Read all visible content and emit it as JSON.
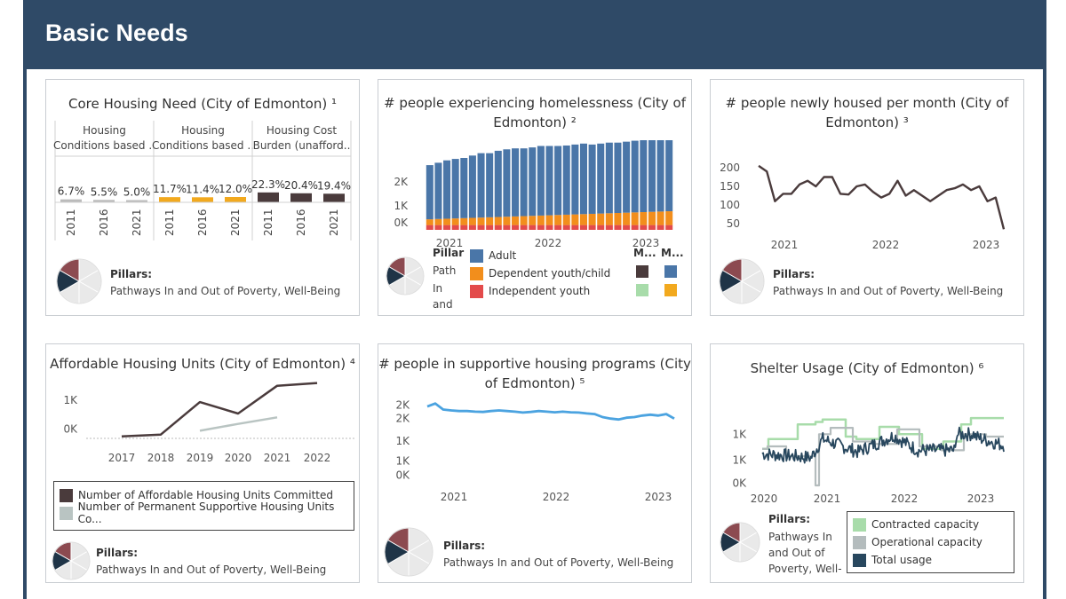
{
  "header": {
    "title": "Basic Needs"
  },
  "colors": {
    "header_bg": "#2f4a67",
    "dark_brown": "#4a3b3c",
    "gray_bar": "#bbbbbb",
    "orange": "#f2a91e",
    "adult": "#4a76a8",
    "dependent": "#f28e1c",
    "independent": "#e34b4b",
    "line_blue": "#4ba3e0",
    "contracted": "#a8dcaa",
    "operational": "#b4bcbd",
    "total": "#28475e",
    "ps_line": "#b9c4c2"
  },
  "pillars": {
    "heading": "Pillars:",
    "text": "Pathways In and Out of Poverty, Well-Being"
  },
  "card1": {
    "title": "Core Housing Need (City of Edmonton) ¹",
    "groups": [
      {
        "header": [
          "Housing",
          "Conditions based .."
        ],
        "color": "#bbbbbb",
        "labels": [
          "6.7%",
          "5.5%",
          "5.0%"
        ],
        "years": [
          "2011",
          "2016",
          "2021"
        ]
      },
      {
        "header": [
          "Housing",
          "Conditions based .."
        ],
        "color": "#f2a91e",
        "labels": [
          "11.7%",
          "11.4%",
          "12.0%"
        ],
        "years": [
          "2011",
          "2016",
          "2021"
        ]
      },
      {
        "header": [
          "Housing Cost",
          "Burden (unafford.."
        ],
        "color": "#4a3b3c",
        "labels": [
          "22.3%",
          "20.4%",
          "19.4%"
        ],
        "years": [
          "2011",
          "2016",
          "2021"
        ]
      }
    ]
  },
  "card2": {
    "title_lines": [
      "# people experiencing homelessness (City of",
      "Edmonton) ²"
    ],
    "y_ticks": [
      "2K",
      "1K",
      "0K"
    ],
    "x_ticks": [
      "2021",
      "2022",
      "2023"
    ],
    "pillars_clipped_head": "Pillar",
    "pillars_clipped_lines": [
      "Path",
      "In",
      "and"
    ],
    "legend": [
      "Adult",
      "Dependent youth/child",
      "Independent youth"
    ],
    "mini_headers": [
      "M...",
      "M..."
    ]
  },
  "card3": {
    "title_lines": [
      "# people newly housed per month (City of",
      "Edmonton) ³"
    ],
    "y_ticks": [
      "200",
      "150",
      "100",
      "50"
    ],
    "x_ticks": [
      "2021",
      "2022",
      "2023"
    ]
  },
  "card4": {
    "title": "Affordable Housing Units (City of Edmonton) ⁴",
    "y_ticks": [
      "1K",
      "0K"
    ],
    "x_ticks": [
      "2017",
      "2018",
      "2019",
      "2020",
      "2021",
      "2022"
    ],
    "legend": [
      "Number of Affordable Housing Units Committed",
      "Number of Permanent Supportive Housing Units Co..."
    ]
  },
  "card5": {
    "title_lines": [
      "# people in supportive housing programs (City",
      "of Edmonton) ⁵"
    ],
    "y_ticks": [
      "2K",
      "2K",
      "1K",
      "1K",
      "0K"
    ],
    "x_ticks": [
      "2021",
      "2022",
      "2023"
    ]
  },
  "card6": {
    "title": "Shelter Usage (City of Edmonton) ⁶",
    "y_ticks": [
      "1K",
      "1K",
      "0K"
    ],
    "x_ticks": [
      "2020",
      "2021",
      "2022",
      "2023"
    ],
    "pillars_lines": [
      "Pathways In",
      "and Out of",
      "Poverty, Well-"
    ],
    "legend": [
      "Contracted capacity",
      "Operational capacity",
      "Total usage"
    ]
  }
}
